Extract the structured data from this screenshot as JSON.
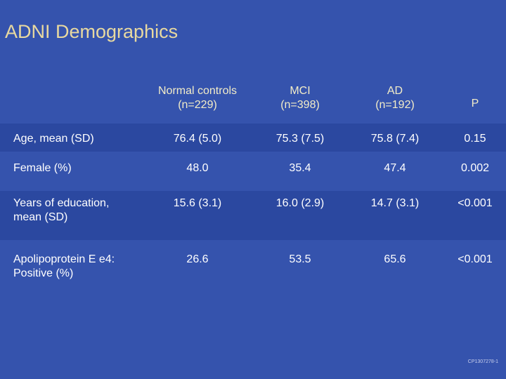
{
  "title": "ADNI Demographics",
  "table": {
    "headers": [
      {
        "line1": "",
        "line2": ""
      },
      {
        "line1": "Normal controls",
        "line2": "(n=229)"
      },
      {
        "line1": "MCI",
        "line2": "(n=398)"
      },
      {
        "line1": "AD",
        "line2": "(n=192)"
      },
      {
        "line1": "",
        "line2": "P"
      }
    ],
    "rows": [
      {
        "label": "Age, mean (SD)",
        "values": [
          "76.4 (5.0)",
          "75.3 (7.5)",
          "75.8 (7.4)",
          "0.15"
        ]
      },
      {
        "label": "Female (%)",
        "values": [
          "48.0",
          "35.4",
          "47.4",
          "0.002"
        ]
      },
      {
        "label_line1": "Years of education,",
        "label_line2": "mean (SD)",
        "values": [
          "15.6 (3.1)",
          "16.0 (2.9)",
          "14.7 (3.1)",
          "<0.001"
        ]
      },
      {
        "label_line1": "Apolipoprotein E e4:",
        "label_line2": "Positive (%)",
        "values": [
          "26.6",
          "53.5",
          "65.6",
          "<0.001"
        ]
      }
    ]
  },
  "footer": "CP1307278-1",
  "colors": {
    "background": "#3553ad",
    "title": "#e8d9a0",
    "band": "#2b48a0"
  }
}
